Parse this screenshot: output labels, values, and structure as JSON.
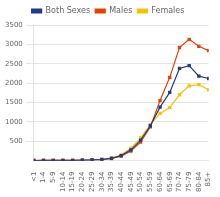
{
  "chart_data": {
    "type": "line",
    "categories": [
      "<1",
      "1-4",
      "5-9",
      "10-14",
      "15-19",
      "20-24",
      "25-29",
      "30-34",
      "35-39",
      "40-44",
      "45-49",
      "50-54",
      "55-59",
      "60-64",
      "65-69",
      "70-74",
      "75-79",
      "80-84",
      "85+"
    ],
    "series": [
      {
        "name": "Both Sexes",
        "color": "#1f3b8c",
        "marker": "square",
        "values": [
          4,
          5,
          6,
          7,
          9,
          12,
          18,
          30,
          60,
          130,
          280,
          530,
          900,
          1380,
          1760,
          2380,
          2450,
          2180,
          2120
        ]
      },
      {
        "name": "Males",
        "color": "#e84000",
        "marker": "square",
        "values": [
          4,
          5,
          6,
          7,
          9,
          11,
          17,
          27,
          55,
          115,
          250,
          480,
          870,
          1550,
          2150,
          2920,
          3130,
          2950,
          2840
        ]
      },
      {
        "name": "Females",
        "color": "#f5c400",
        "marker": "square",
        "values": [
          4,
          5,
          6,
          7,
          9,
          13,
          20,
          35,
          70,
          150,
          320,
          590,
          930,
          1220,
          1370,
          1700,
          1930,
          1960,
          1830
        ]
      }
    ],
    "ylim": [
      0,
      3500
    ],
    "yticks": [
      500,
      1000,
      1500,
      2000,
      2500,
      3000,
      3500
    ],
    "grid": true,
    "legend": "top"
  }
}
